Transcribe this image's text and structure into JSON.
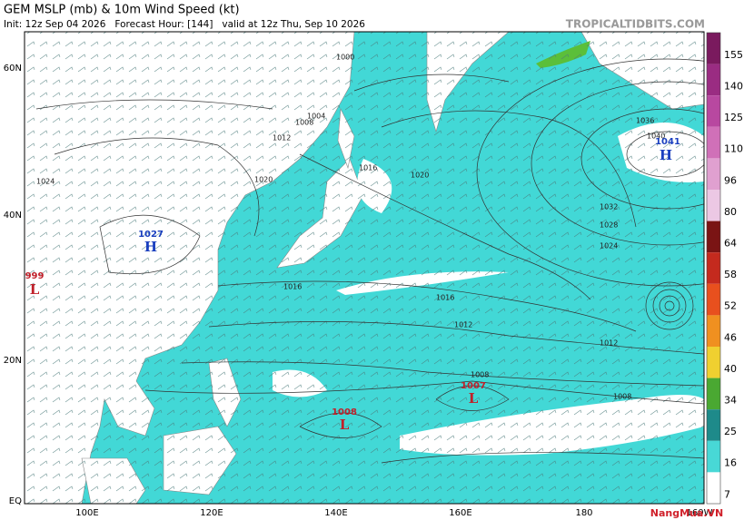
{
  "header": {
    "title": "GEM MSLP (mb) & 10m Wind Speed (kt)",
    "subtitle": "Init: 12z Sep 04 2026   Forecast Hour: [144]   valid at 12z Thu, Sep 10 2026",
    "source": "TROPICALTIDBITS.COM"
  },
  "map": {
    "lat_labels": [
      "60N",
      "40N",
      "20N",
      "EQ"
    ],
    "lon_labels": [
      "100E",
      "120E",
      "140E",
      "160E",
      "180",
      "160W"
    ],
    "centers": [
      {
        "symbol": "H",
        "pressure": "1041"
      },
      {
        "symbol": "H",
        "pressure": "1027"
      },
      {
        "symbol": "L",
        "pressure": "999"
      },
      {
        "symbol": "L",
        "pressure": "1008"
      },
      {
        "symbol": "L",
        "pressure": "1007"
      }
    ],
    "isobar_labels": [
      "1000",
      "1004",
      "1008",
      "1012",
      "1016",
      "1020",
      "1024",
      "1028",
      "1032",
      "1036",
      "1040",
      "1016",
      "1012",
      "1008",
      "1008",
      "1020",
      "1016",
      "1012",
      "1024"
    ]
  },
  "colorbar": {
    "labels": [
      "155",
      "140",
      "125",
      "110",
      "96",
      "80",
      "64",
      "58",
      "52",
      "46",
      "40",
      "34",
      "25",
      "16",
      "7"
    ]
  },
  "watermark": "NangMua.VN"
}
